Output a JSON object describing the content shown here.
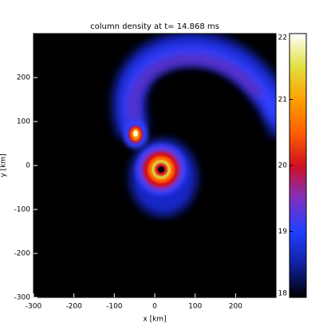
{
  "chart_data": {
    "type": "heatmap",
    "title": "column density at t= 14.868 ms",
    "xlabel": "x [km]",
    "ylabel": "y [km]",
    "xlim": [
      -300,
      300
    ],
    "ylim": [
      -300,
      300
    ],
    "xticks": [
      -300,
      -200,
      -100,
      0,
      100,
      200
    ],
    "yticks": [
      -300,
      -200,
      -100,
      0,
      100,
      200
    ],
    "colorbar": {
      "clim": [
        18,
        22
      ],
      "ticks": [
        18,
        19,
        20,
        21,
        22
      ],
      "colormap": [
        "#000000",
        "#1020a0",
        "#2040ff",
        "#8030c0",
        "#d01020",
        "#ff6000",
        "#ffa000",
        "#e0e040",
        "#ffffff"
      ]
    }
  }
}
